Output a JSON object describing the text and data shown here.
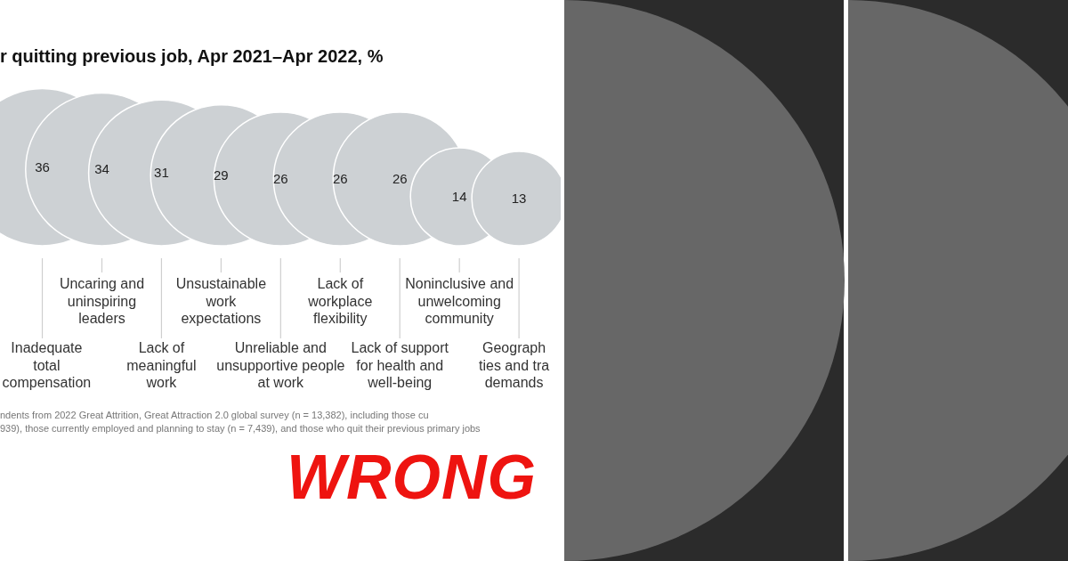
{
  "chart_data": {
    "type": "other",
    "title": "r quitting previous job, Apr 2021–Apr 2022, %",
    "categories": [
      "Inadequate\ntotal\ncompensation",
      "Uncaring and\nuninspiring\nleaders",
      "Lack of\nmeaningful\nwork",
      "Unsustainable\nwork\nexpectations",
      "Unreliable and\nunsupportive people\nat work",
      "Lack of\nworkplace\nflexibility",
      "Lack of support\nfor health and\nwell-being",
      "Noninclusive and\nunwelcoming\ncommunity",
      "Geograph\nties and tra\ndemands"
    ],
    "values": [
      36,
      34,
      31,
      29,
      26,
      26,
      26,
      14,
      13
    ],
    "color": "#cdd1d4",
    "data_labels": true,
    "annotations": [
      "ndents from 2022 Great Attrition, Great Attraction 2.0 global survey (n = 13,382), including those cu",
      "939), those currently employed and planning to stay (n = 7,439), and those who quit their previous primary jobs",
      "WRONG"
    ]
  }
}
